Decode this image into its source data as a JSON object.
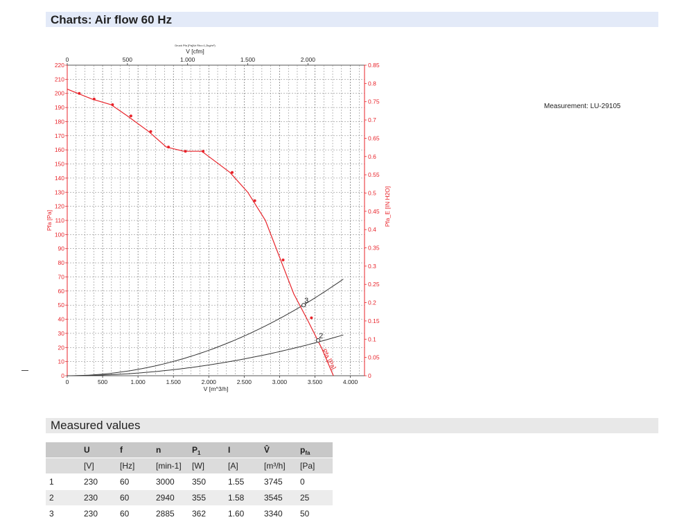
{
  "chart_section": {
    "title": "Charts: Air flow 60 Hz"
  },
  "measurement_label": "Measurement: LU-29105",
  "chart_data": {
    "type": "line",
    "top_small_label": "Druck Pfa [Pa]Air Rho=1,2kg/m³)",
    "x_top": {
      "label": "V [cfm]",
      "min": 0,
      "max": 2470,
      "ticks": [
        "0",
        "500",
        "1.000",
        "1.500",
        "2.000"
      ],
      "tick_values": [
        0,
        500,
        1000,
        1500,
        2000
      ]
    },
    "x_bottom": {
      "label": "V [m^3/h]",
      "min": 0,
      "max": 4200,
      "ticks": [
        "0",
        "500",
        "1.000",
        "1.500",
        "2.000",
        "2.500",
        "3.000",
        "3.500",
        "4.000"
      ],
      "tick_values": [
        0,
        500,
        1000,
        1500,
        2000,
        2500,
        3000,
        3500,
        4000
      ]
    },
    "y_left": {
      "label": "Pfa [Pa]",
      "min": 0,
      "max": 220,
      "ticks": [
        "0",
        "10",
        "20",
        "30",
        "40",
        "50",
        "60",
        "70",
        "80",
        "90",
        "100",
        "110",
        "120",
        "130",
        "140",
        "150",
        "160",
        "170",
        "180",
        "190",
        "200",
        "210",
        "220"
      ]
    },
    "y_right": {
      "label": "Pfa_E [IN H2O]",
      "min": 0,
      "max": 0.85,
      "ticks": [
        "0",
        "0.05",
        "0.1",
        "0.15",
        "0.2",
        "0.25",
        "0.3",
        "0.35",
        "0.4",
        "0.45",
        "0.5",
        "0.55",
        "0.6",
        "0.65",
        "0.7",
        "0.75",
        "0.8",
        "0.85"
      ]
    },
    "series": [
      {
        "name": "Pfa [Pa]",
        "color": "#e8232a",
        "points": [
          [
            0,
            203
          ],
          [
            150,
            200
          ],
          [
            350,
            196
          ],
          [
            620,
            192
          ],
          [
            850,
            184
          ],
          [
            1150,
            173
          ],
          [
            1400,
            162
          ],
          [
            1650,
            159
          ],
          [
            1900,
            159
          ],
          [
            2300,
            144
          ],
          [
            2550,
            130
          ],
          [
            2800,
            110
          ],
          [
            3000,
            84
          ],
          [
            3200,
            58
          ],
          [
            3400,
            39
          ],
          [
            3600,
            19
          ],
          [
            3760,
            0
          ]
        ],
        "markers": [
          [
            170,
            200
          ],
          [
            380,
            196
          ],
          [
            640,
            192
          ],
          [
            900,
            184
          ],
          [
            1180,
            173
          ],
          [
            1430,
            162
          ],
          [
            1670,
            159
          ],
          [
            1920,
            159
          ],
          [
            2330,
            144
          ],
          [
            2650,
            124
          ],
          [
            3050,
            82
          ],
          [
            3450,
            41
          ]
        ]
      }
    ],
    "system_curves": [
      {
        "label": "3",
        "color": "#333333",
        "k": 0.0045,
        "x_end": 3900,
        "label_point": [
          3340,
          50
        ]
      },
      {
        "label": "2",
        "color": "#333333",
        "k": 0.0019,
        "x_end": 3900,
        "label_point": [
          3545,
          25
        ]
      }
    ],
    "curve_end_label": "Pfa [Pa]"
  },
  "measured_section": {
    "title": "Measured values"
  },
  "table": {
    "headers": [
      {
        "main": "",
        "sub": "",
        "accent": ""
      },
      {
        "main": "U",
        "sub": "",
        "accent": ""
      },
      {
        "main": "f",
        "sub": "",
        "accent": ""
      },
      {
        "main": "n",
        "sub": "",
        "accent": ""
      },
      {
        "main": "P",
        "sub": "1",
        "accent": ""
      },
      {
        "main": "I",
        "sub": "",
        "accent": ""
      },
      {
        "main": "V",
        "sub": "",
        "accent": "̂"
      },
      {
        "main": "p",
        "sub": "fa",
        "accent": ""
      }
    ],
    "units": [
      "",
      "[V]",
      "[Hz]",
      "[min-1]",
      "[W]",
      "[A]",
      "[m³/h]",
      "[Pa]"
    ],
    "rows": [
      [
        "1",
        "230",
        "60",
        "3000",
        "350",
        "1.55",
        "3745",
        "0"
      ],
      [
        "2",
        "230",
        "60",
        "2940",
        "355",
        "1.58",
        "3545",
        "25"
      ],
      [
        "3",
        "230",
        "60",
        "2885",
        "362",
        "1.60",
        "3340",
        "50"
      ]
    ]
  }
}
